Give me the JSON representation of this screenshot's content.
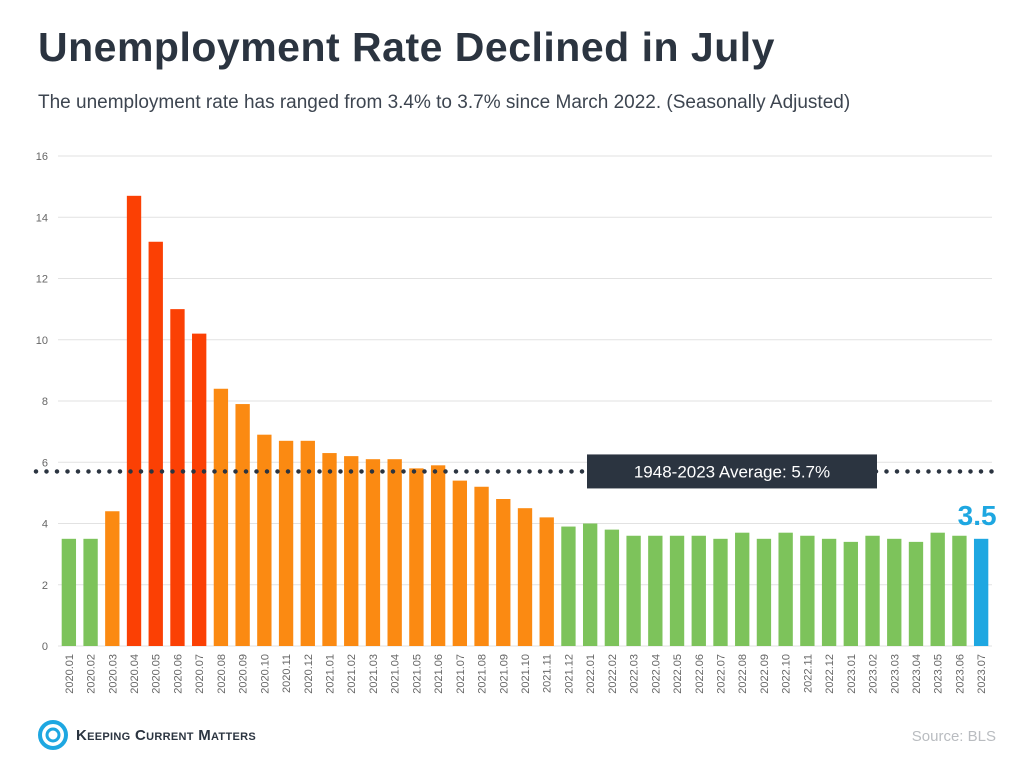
{
  "header": {
    "title": "Unemployment Rate Declined in July",
    "subtitle": "The unemployment  rate has ranged from 3.4% to 3.7% since March 2022. (Seasonally Adjusted)"
  },
  "footer": {
    "brand": "Keeping Current Matters",
    "source": "Source: BLS"
  },
  "colors": {
    "green": "#7dc35b",
    "orange": "#fb8a12",
    "red": "#fb4004",
    "blue": "#1ea7e1",
    "average_box": "#2b3440",
    "grid": "#e2e2e2",
    "axis_text": "#666666"
  },
  "chart_data": {
    "type": "bar",
    "categories": [
      "2020.01",
      "2020.02",
      "2020.03",
      "2020.04",
      "2020.05",
      "2020.06",
      "2020.07",
      "2020.08",
      "2020.09",
      "2020.10",
      "2020.11",
      "2020.12",
      "2021.01",
      "2021.02",
      "2021.03",
      "2021.04",
      "2021.05",
      "2021.06",
      "2021.07",
      "2021.08",
      "2021.09",
      "2021.10",
      "2021.11",
      "2021.12",
      "2022.01",
      "2022.02",
      "2022.03",
      "2022.04",
      "2022.05",
      "2022.06",
      "2022.07",
      "2022.08",
      "2022.09",
      "2022.10",
      "2022.11",
      "2022.12",
      "2023.01",
      "2023.02",
      "2023.03",
      "2023.04",
      "2023.05",
      "2023.06",
      "2023.07"
    ],
    "values": [
      3.5,
      3.5,
      4.4,
      14.7,
      13.2,
      11.0,
      10.2,
      8.4,
      7.9,
      6.9,
      6.7,
      6.7,
      6.3,
      6.2,
      6.1,
      6.1,
      5.8,
      5.9,
      5.4,
      5.2,
      4.8,
      4.5,
      4.2,
      3.9,
      4.0,
      3.8,
      3.6,
      3.6,
      3.6,
      3.6,
      3.5,
      3.7,
      3.5,
      3.7,
      3.6,
      3.5,
      3.4,
      3.6,
      3.5,
      3.4,
      3.7,
      3.6,
      3.5
    ],
    "bar_colors": [
      "green",
      "green",
      "orange",
      "red",
      "red",
      "red",
      "red",
      "orange",
      "orange",
      "orange",
      "orange",
      "orange",
      "orange",
      "orange",
      "orange",
      "orange",
      "orange",
      "orange",
      "orange",
      "orange",
      "orange",
      "orange",
      "orange",
      "green",
      "green",
      "green",
      "green",
      "green",
      "green",
      "green",
      "green",
      "green",
      "green",
      "green",
      "green",
      "green",
      "green",
      "green",
      "green",
      "green",
      "green",
      "green",
      "blue"
    ],
    "ylim": [
      0,
      16
    ],
    "yticks": [
      0,
      2,
      4,
      6,
      8,
      10,
      12,
      14,
      16
    ],
    "grid": true,
    "average": {
      "value": 5.7,
      "label": "1948-2023 Average: 5.7%"
    },
    "highlight_label": "3.5"
  }
}
